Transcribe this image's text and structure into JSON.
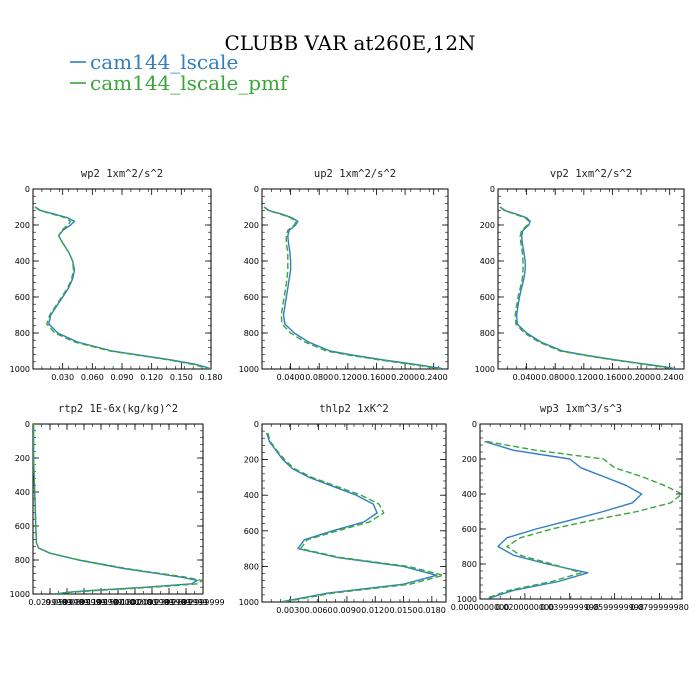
{
  "figure": {
    "title": "CLUBB VAR at260E,12N",
    "legend": [
      {
        "label": "cam144_lscale",
        "color": "#2f7fc1",
        "dash": ""
      },
      {
        "label": "cam144_lscale_pmf",
        "color": "#3aa63a",
        "dash": "6,3"
      }
    ]
  },
  "chart_data": [
    {
      "type": "line",
      "title": "wp2  1xm^2/s^2",
      "xlim": [
        0,
        0.18
      ],
      "ylim": [
        1000,
        0
      ],
      "xticks": [
        0.03,
        0.06,
        0.09,
        0.12,
        0.15,
        0.18
      ],
      "xtick_labels": [
        "0.030",
        "0.060",
        "0.090",
        "0.120",
        "0.150",
        "0.180"
      ],
      "yticks": [
        0,
        200,
        400,
        600,
        800,
        1000
      ],
      "ytick_labels": [
        "0",
        "200",
        "400",
        "600",
        "800",
        "1000"
      ],
      "series": [
        {
          "name": "cam144_lscale",
          "y": [
            100,
            120,
            140,
            160,
            180,
            200,
            230,
            260,
            300,
            350,
            400,
            450,
            500,
            550,
            600,
            650,
            700,
            750,
            800,
            850,
            900,
            925,
            950,
            975,
            990,
            1000
          ],
          "x": [
            0.002,
            0.008,
            0.022,
            0.035,
            0.042,
            0.038,
            0.03,
            0.026,
            0.03,
            0.036,
            0.04,
            0.042,
            0.04,
            0.036,
            0.03,
            0.024,
            0.018,
            0.016,
            0.025,
            0.045,
            0.08,
            0.11,
            0.14,
            0.165,
            0.175,
            0.18
          ]
        },
        {
          "name": "cam144_lscale_pmf",
          "y": [
            100,
            120,
            140,
            160,
            180,
            200,
            230,
            260,
            300,
            350,
            400,
            450,
            500,
            550,
            600,
            650,
            700,
            750,
            800,
            850,
            900,
            925,
            950,
            975,
            990,
            1000
          ],
          "x": [
            0.002,
            0.007,
            0.02,
            0.033,
            0.038,
            0.035,
            0.029,
            0.026,
            0.03,
            0.036,
            0.04,
            0.041,
            0.039,
            0.035,
            0.029,
            0.023,
            0.017,
            0.014,
            0.022,
            0.042,
            0.078,
            0.108,
            0.138,
            0.162,
            0.172,
            0.178
          ]
        }
      ]
    },
    {
      "type": "line",
      "title": "up2  1xm^2/s^2",
      "xlim": [
        0,
        0.26
      ],
      "ylim": [
        1000,
        0
      ],
      "xticks": [
        0.04,
        0.08,
        0.12,
        0.16,
        0.2,
        0.24
      ],
      "xtick_labels": [
        "0.0400",
        "0.0800",
        "0.1200",
        "0.1600",
        "0.2000",
        "0.2400"
      ],
      "yticks": [
        0,
        200,
        400,
        600,
        800,
        1000
      ],
      "ytick_labels": [
        "0",
        "200",
        "400",
        "600",
        "800",
        "1000"
      ],
      "series": [
        {
          "name": "cam144_lscale",
          "y": [
            100,
            120,
            140,
            160,
            180,
            200,
            230,
            260,
            300,
            350,
            400,
            450,
            500,
            550,
            600,
            650,
            700,
            750,
            800,
            850,
            900,
            925,
            950,
            975,
            990,
            1000
          ],
          "x": [
            0.003,
            0.01,
            0.028,
            0.042,
            0.05,
            0.047,
            0.038,
            0.036,
            0.037,
            0.039,
            0.04,
            0.04,
            0.038,
            0.036,
            0.034,
            0.032,
            0.03,
            0.032,
            0.045,
            0.065,
            0.095,
            0.13,
            0.17,
            0.215,
            0.24,
            0.255
          ]
        },
        {
          "name": "cam144_lscale_pmf",
          "y": [
            100,
            120,
            140,
            160,
            180,
            200,
            230,
            260,
            300,
            350,
            400,
            450,
            500,
            550,
            600,
            650,
            700,
            750,
            800,
            850,
            900,
            925,
            950,
            975,
            990,
            1000
          ],
          "x": [
            0.003,
            0.009,
            0.026,
            0.04,
            0.048,
            0.045,
            0.036,
            0.034,
            0.034,
            0.036,
            0.036,
            0.036,
            0.035,
            0.033,
            0.031,
            0.029,
            0.027,
            0.028,
            0.04,
            0.06,
            0.09,
            0.125,
            0.165,
            0.21,
            0.236,
            0.25
          ]
        }
      ]
    },
    {
      "type": "line",
      "title": "vp2  1xm^2/s^2",
      "xlim": [
        0,
        0.26
      ],
      "ylim": [
        1000,
        0
      ],
      "xticks": [
        0.04,
        0.08,
        0.12,
        0.16,
        0.2,
        0.24
      ],
      "xtick_labels": [
        "0.0400",
        "0.0800",
        "0.1200",
        "0.1600",
        "0.2000",
        "0.2400"
      ],
      "yticks": [
        0,
        200,
        400,
        600,
        800,
        1000
      ],
      "ytick_labels": [
        "0",
        "200",
        "400",
        "600",
        "800",
        "1000"
      ],
      "series": [
        {
          "name": "cam144_lscale",
          "y": [
            100,
            120,
            140,
            160,
            180,
            200,
            230,
            260,
            300,
            350,
            400,
            450,
            500,
            550,
            600,
            650,
            700,
            750,
            800,
            850,
            900,
            925,
            950,
            975,
            990,
            1000
          ],
          "x": [
            0.003,
            0.01,
            0.026,
            0.04,
            0.045,
            0.043,
            0.035,
            0.033,
            0.034,
            0.036,
            0.038,
            0.038,
            0.036,
            0.033,
            0.03,
            0.028,
            0.026,
            0.027,
            0.04,
            0.06,
            0.09,
            0.125,
            0.165,
            0.21,
            0.236,
            0.25
          ]
        },
        {
          "name": "cam144_lscale_pmf",
          "y": [
            100,
            120,
            140,
            160,
            180,
            200,
            230,
            260,
            300,
            350,
            400,
            450,
            500,
            550,
            600,
            650,
            700,
            750,
            800,
            850,
            900,
            925,
            950,
            975,
            990,
            1000
          ],
          "x": [
            0.003,
            0.009,
            0.024,
            0.038,
            0.043,
            0.041,
            0.033,
            0.031,
            0.032,
            0.034,
            0.035,
            0.035,
            0.034,
            0.031,
            0.028,
            0.026,
            0.024,
            0.025,
            0.037,
            0.057,
            0.087,
            0.122,
            0.162,
            0.206,
            0.232,
            0.246
          ]
        }
      ]
    },
    {
      "type": "line",
      "title": "rtp2  1E-6x(kg/kg)^2",
      "xlim": [
        0,
        0.3
      ],
      "ylim": [
        1000,
        0
      ],
      "xticks": [
        0.03,
        0.06,
        0.09,
        0.12,
        0.15,
        0.18,
        0.21,
        0.24,
        0.27,
        0.3
      ],
      "xtick_labels": [
        "0.0299999",
        "0.0599999",
        "0.0899999",
        "0.1199999",
        "0.1500000",
        "0.1800000",
        "0.2099999",
        "0.2399999",
        "0.2699999",
        "0.2999999"
      ],
      "yticks": [
        0,
        200,
        400,
        600,
        800,
        1000
      ],
      "ytick_labels": [
        "0",
        "200",
        "400",
        "600",
        "800",
        "1000"
      ],
      "series": [
        {
          "name": "cam144_lscale",
          "y": [
            0,
            100,
            200,
            300,
            400,
            500,
            600,
            700,
            730,
            760,
            800,
            850,
            880,
            900,
            920,
            940,
            960,
            980,
            990,
            1000
          ],
          "x": [
            0.001,
            0.001,
            0.001,
            0.002,
            0.003,
            0.004,
            0.005,
            0.006,
            0.01,
            0.03,
            0.08,
            0.16,
            0.22,
            0.26,
            0.29,
            0.28,
            0.2,
            0.1,
            0.06,
            0.04
          ]
        },
        {
          "name": "cam144_lscale_pmf",
          "y": [
            0,
            100,
            200,
            300,
            400,
            500,
            600,
            700,
            730,
            760,
            800,
            850,
            880,
            900,
            920,
            940,
            960,
            980,
            990,
            1000
          ],
          "x": [
            0.001,
            0.001,
            0.001,
            0.002,
            0.003,
            0.004,
            0.005,
            0.006,
            0.01,
            0.03,
            0.082,
            0.165,
            0.226,
            0.268,
            0.298,
            0.292,
            0.212,
            0.11,
            0.066,
            0.044
          ]
        }
      ]
    },
    {
      "type": "line",
      "title": "thlp2  1xK^2",
      "xlim": [
        0,
        0.0195
      ],
      "ylim": [
        1000,
        0
      ],
      "xticks": [
        0.003,
        0.006,
        0.009,
        0.012,
        0.015,
        0.018
      ],
      "xtick_labels": [
        "0.0030",
        "0.0060",
        "0.0090",
        "0.0120",
        "0.0150",
        "0.0180"
      ],
      "yticks": [
        0,
        200,
        400,
        600,
        800,
        1000
      ],
      "ytick_labels": [
        "0",
        "200",
        "400",
        "600",
        "800",
        "1000"
      ],
      "series": [
        {
          "name": "cam144_lscale",
          "y": [
            50,
            100,
            150,
            200,
            250,
            300,
            350,
            400,
            450,
            500,
            550,
            600,
            650,
            700,
            750,
            800,
            850,
            900,
            950,
            1000
          ],
          "x": [
            0.0005,
            0.0008,
            0.0015,
            0.0022,
            0.0032,
            0.005,
            0.0075,
            0.01,
            0.0118,
            0.0122,
            0.0108,
            0.0075,
            0.0045,
            0.0038,
            0.008,
            0.015,
            0.0185,
            0.015,
            0.007,
            0.002
          ]
        },
        {
          "name": "cam144_lscale_pmf",
          "y": [
            50,
            100,
            150,
            200,
            250,
            300,
            350,
            400,
            450,
            500,
            550,
            600,
            650,
            700,
            750,
            800,
            850,
            900,
            950,
            1000
          ],
          "x": [
            0.0006,
            0.0009,
            0.0016,
            0.0024,
            0.0034,
            0.0053,
            0.0079,
            0.0105,
            0.0124,
            0.0129,
            0.0114,
            0.008,
            0.0048,
            0.0041,
            0.0083,
            0.0155,
            0.0192,
            0.0157,
            0.0075,
            0.0022
          ]
        }
      ]
    },
    {
      "type": "line",
      "title": "wp3  1xm^3/s^3",
      "xlim": [
        0,
        0.09
      ],
      "ylim": [
        1000,
        0
      ],
      "xticks": [
        0,
        0.02,
        0.04,
        0.06,
        0.08
      ],
      "xtick_labels": [
        "0.0000000000",
        "0.0200000000",
        "0.0399999998",
        "0.0599999998",
        "0.0799999980"
      ],
      "yticks": [
        0,
        200,
        400,
        600,
        800,
        1000
      ],
      "ytick_labels": [
        "0",
        "200",
        "400",
        "600",
        "800",
        "1000"
      ],
      "series": [
        {
          "name": "cam144_lscale",
          "y": [
            100,
            150,
            200,
            250,
            300,
            350,
            400,
            450,
            500,
            550,
            600,
            650,
            700,
            750,
            800,
            850,
            900,
            950,
            1000
          ],
          "x": [
            0.002,
            0.015,
            0.04,
            0.045,
            0.055,
            0.065,
            0.072,
            0.068,
            0.055,
            0.04,
            0.025,
            0.012,
            0.008,
            0.015,
            0.03,
            0.048,
            0.035,
            0.015,
            0.003
          ]
        },
        {
          "name": "cam144_lscale_pmf",
          "y": [
            100,
            150,
            200,
            250,
            300,
            350,
            400,
            450,
            500,
            550,
            600,
            650,
            700,
            750,
            800,
            850,
            900,
            950,
            1000
          ],
          "x": [
            0.003,
            0.025,
            0.055,
            0.06,
            0.072,
            0.082,
            0.09,
            0.085,
            0.07,
            0.05,
            0.032,
            0.018,
            0.012,
            0.018,
            0.032,
            0.045,
            0.032,
            0.013,
            0.002
          ]
        }
      ]
    }
  ]
}
